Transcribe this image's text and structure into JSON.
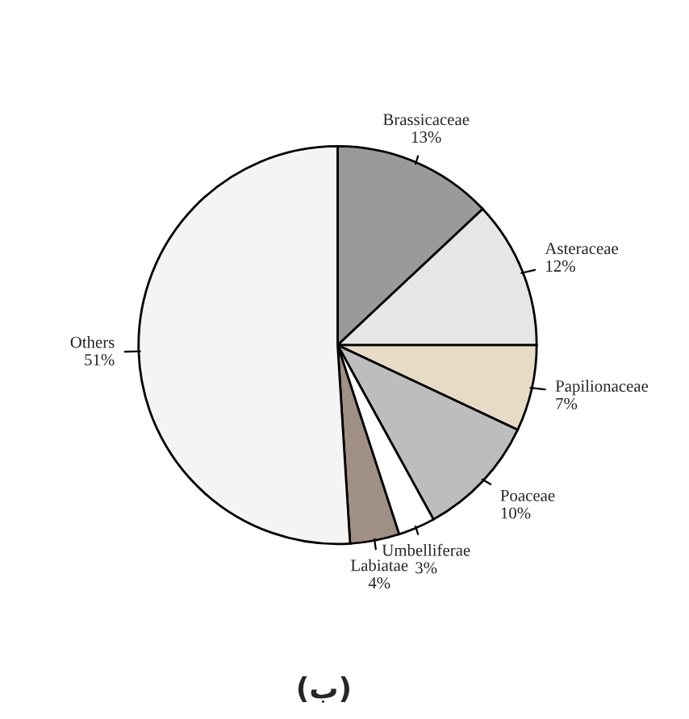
{
  "chart_data": {
    "type": "pie",
    "categories": [
      "Brassicaceae",
      "Asteraceae",
      "Papilionaceae",
      "Poaceae",
      "Umbelliferae",
      "Labiatae",
      "Others"
    ],
    "values": [
      13,
      12,
      7,
      10,
      3,
      4,
      51
    ],
    "value_labels": [
      "13%",
      "12%",
      "7%",
      "10%",
      "3%",
      "4%",
      "51%"
    ],
    "colors": [
      "#9a9a9a",
      "#e6e6e6",
      "#e6dcc6",
      "#bdbdbd",
      "#ffffff",
      "#a08f85",
      "#f4f4f4"
    ],
    "annotations": [
      "(ب)"
    ]
  }
}
